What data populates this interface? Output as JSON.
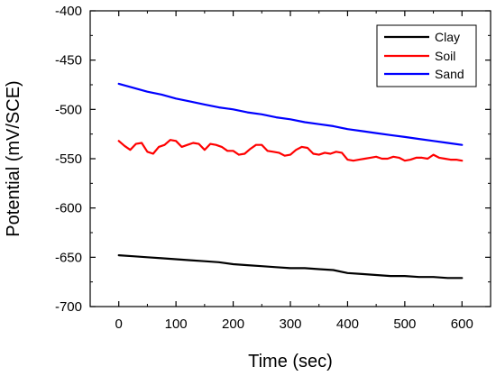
{
  "chart_data": {
    "type": "line",
    "xlabel": "Time (sec)",
    "ylabel": "Potential (mV/SCE)",
    "xlim": [
      -50,
      650
    ],
    "ylim": [
      -700,
      -400
    ],
    "xticks": [
      0,
      100,
      200,
      300,
      400,
      500,
      600
    ],
    "yticks": [
      -700,
      -650,
      -600,
      -550,
      -500,
      -450,
      -400
    ],
    "grid": false,
    "legend_position": "top-right",
    "series": [
      {
        "name": "Clay",
        "color": "#000000",
        "x": [
          0,
          25,
          50,
          75,
          100,
          125,
          150,
          175,
          200,
          225,
          250,
          275,
          300,
          325,
          350,
          375,
          400,
          425,
          450,
          475,
          500,
          525,
          550,
          575,
          600
        ],
        "y": [
          -648,
          -649,
          -650,
          -651,
          -652,
          -653,
          -654,
          -655,
          -657,
          -658,
          -659,
          -660,
          -661,
          -661,
          -662,
          -663,
          -666,
          -667,
          -668,
          -669,
          -669,
          -670,
          -670,
          -671,
          -671
        ]
      },
      {
        "name": "Soil",
        "color": "#ff0000",
        "x": [
          0,
          10,
          20,
          30,
          40,
          50,
          60,
          70,
          80,
          90,
          100,
          110,
          120,
          130,
          140,
          150,
          160,
          170,
          180,
          190,
          200,
          210,
          220,
          230,
          240,
          250,
          260,
          270,
          280,
          290,
          300,
          310,
          320,
          330,
          340,
          350,
          360,
          370,
          380,
          390,
          400,
          410,
          420,
          430,
          440,
          450,
          460,
          470,
          480,
          490,
          500,
          510,
          520,
          530,
          540,
          550,
          560,
          570,
          580,
          590,
          600
        ],
        "y": [
          -532,
          -537,
          -541,
          -535,
          -534,
          -543,
          -545,
          -538,
          -536,
          -531,
          -532,
          -538,
          -536,
          -534,
          -535,
          -541,
          -535,
          -536,
          -538,
          -542,
          -542,
          -546,
          -545,
          -540,
          -536,
          -536,
          -542,
          -543,
          -544,
          -547,
          -546,
          -541,
          -538,
          -539,
          -545,
          -546,
          -544,
          -545,
          -543,
          -544,
          -551,
          -552,
          -551,
          -550,
          -549,
          -548,
          -550,
          -550,
          -548,
          -549,
          -552,
          -551,
          -549,
          -549,
          -550,
          -546,
          -549,
          -550,
          -551,
          -551,
          -552
        ]
      },
      {
        "name": "Sand",
        "color": "#0000ff",
        "x": [
          0,
          25,
          50,
          75,
          100,
          125,
          150,
          175,
          200,
          225,
          250,
          275,
          300,
          325,
          350,
          375,
          400,
          425,
          450,
          475,
          500,
          525,
          550,
          575,
          600
        ],
        "y": [
          -474,
          -478,
          -482,
          -485,
          -489,
          -492,
          -495,
          -498,
          -500,
          -503,
          -505,
          -508,
          -510,
          -513,
          -515,
          -517,
          -520,
          -522,
          -524,
          -526,
          -528,
          -530,
          -532,
          -534,
          -536
        ]
      }
    ]
  }
}
